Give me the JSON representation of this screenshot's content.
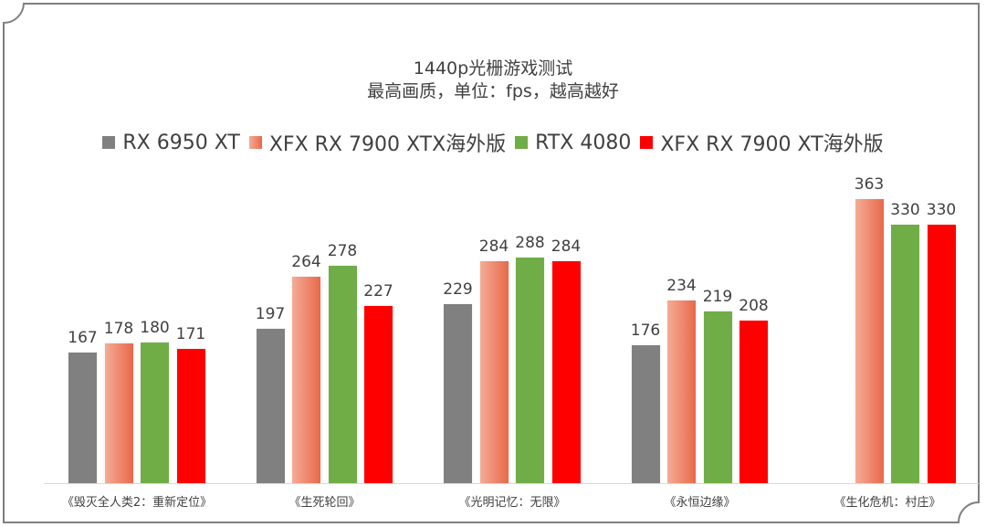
{
  "chart_data": {
    "type": "bar",
    "title": "1440p光栅游戏测试",
    "subtitle": "最高画质，单位：fps，越高越好",
    "xlabel": "",
    "ylabel": "fps",
    "grid": false,
    "legend_position": "top",
    "categories": [
      "《毁灭全人类2：重新定位》",
      "《生死轮回》",
      "《光明记忆：无限》",
      "《永恒边缘》",
      "《生化危机：村庄》"
    ],
    "series": [
      {
        "name": "RX 6950 XT",
        "color": "#808080",
        "values": [
          167,
          197,
          229,
          176,
          null
        ]
      },
      {
        "name": "XFX RX 7900 XTX海外版",
        "color": "#e8694a",
        "values": [
          178,
          264,
          284,
          234,
          363
        ]
      },
      {
        "name": "RTX 4080",
        "color": "#70ad47",
        "values": [
          180,
          278,
          288,
          219,
          330
        ]
      },
      {
        "name": "XFX RX 7900 XT海外版",
        "color": "#ff0000",
        "values": [
          171,
          227,
          284,
          208,
          330
        ]
      }
    ]
  }
}
